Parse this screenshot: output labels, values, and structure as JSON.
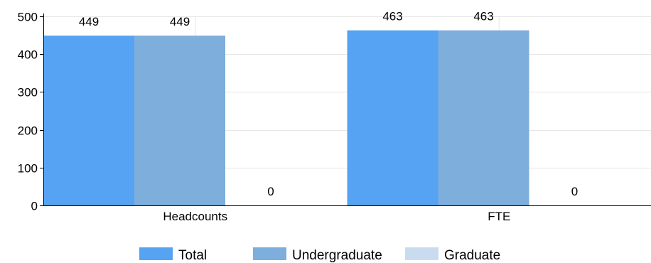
{
  "chart_data": {
    "type": "bar",
    "categories": [
      "Headcounts",
      "FTE"
    ],
    "series": [
      {
        "name": "Total",
        "values": [
          449,
          463
        ],
        "color": "#55a3f2"
      },
      {
        "name": "Undergraduate",
        "values": [
          449,
          463
        ],
        "color": "#7eaedb"
      },
      {
        "name": "Graduate",
        "values": [
          0,
          0
        ],
        "color": "#c9dcef"
      }
    ],
    "ylim": [
      0,
      500
    ],
    "yticks": [
      0,
      100,
      200,
      300,
      400,
      500
    ],
    "data_labels": true,
    "grid": true,
    "legend": "bottom-center"
  }
}
